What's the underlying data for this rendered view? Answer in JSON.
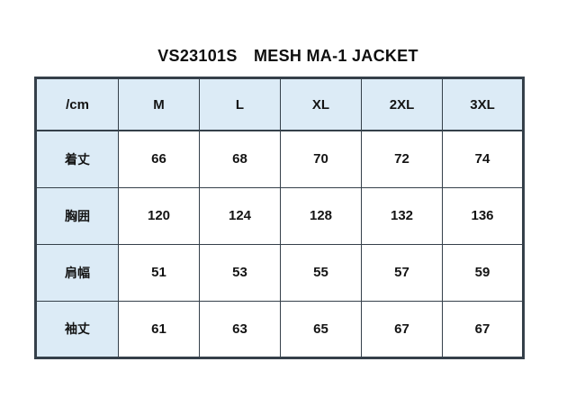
{
  "title": "VS23101S　MESH MA-1 JACKET",
  "table": {
    "unit_label": "/cm",
    "header": [
      "/cm",
      "M",
      "L",
      "XL",
      "2XL",
      "3XL"
    ],
    "rows": [
      {
        "label": "着丈",
        "values": [
          "66",
          "68",
          "70",
          "72",
          "74"
        ]
      },
      {
        "label": "胸囲",
        "values": [
          "120",
          "124",
          "128",
          "132",
          "136"
        ]
      },
      {
        "label": "肩幅",
        "values": [
          "51",
          "53",
          "55",
          "57",
          "59"
        ]
      },
      {
        "label": "袖丈",
        "values": [
          "61",
          "63",
          "65",
          "67",
          "67"
        ]
      }
    ]
  },
  "chart_data": {
    "type": "table",
    "title": "VS23101S　MESH MA-1 JACKET",
    "unit": "cm",
    "columns": [
      "/cm",
      "M",
      "L",
      "XL",
      "2XL",
      "3XL"
    ],
    "rows": [
      [
        "着丈",
        66,
        68,
        70,
        72,
        74
      ],
      [
        "胸囲",
        120,
        124,
        128,
        132,
        136
      ],
      [
        "肩幅",
        51,
        53,
        55,
        57,
        59
      ],
      [
        "袖丈",
        61,
        63,
        65,
        67,
        67
      ]
    ]
  },
  "colors": {
    "header_bg": "#dcebf6",
    "border": "#35404a",
    "text": "#141414",
    "page_bg": "#ffffff"
  }
}
